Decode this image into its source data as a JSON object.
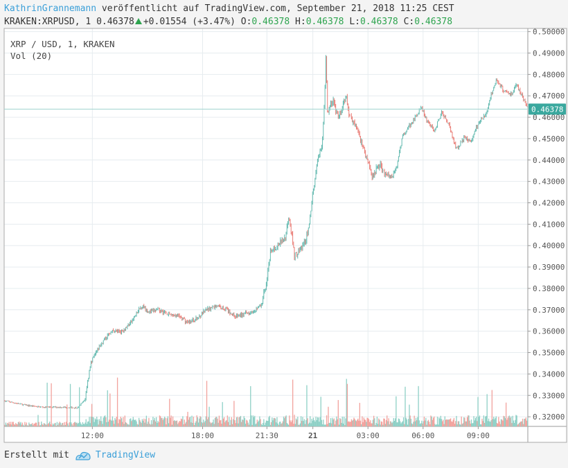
{
  "header": {
    "author": "KathrinGrannemann",
    "published": "veröffentlicht auf TradingView.com, September 21, 2018 11:25 CEST",
    "symbol": "KRAKEN:XRPUSD, 1",
    "last": "0.46378",
    "change": "+0.01554 (+3.47%)",
    "o_label": "O:",
    "o_value": "0.46378",
    "h_label": "H:",
    "h_value": "0.46378",
    "l_label": "L:",
    "l_value": "0.46378",
    "c_label": "C:",
    "c_value": "0.46378"
  },
  "legend": {
    "series": "XRP / USD, 1, KRAKEN",
    "volume": "Vol (20)"
  },
  "footer": {
    "created_with": "Erstellt mit",
    "brand": "TradingView"
  },
  "colors": {
    "up": "#5fb8ae",
    "down": "#e97a73",
    "vol_up": "#8ed0c6",
    "vol_down": "#f2a29d",
    "price_line": "#9fd3cf",
    "price_tag": "#3aa89e",
    "grid": "#e6ecef"
  },
  "chart_data": {
    "type": "candlestick",
    "y_ticks": [
      "0.50000",
      "0.49000",
      "0.48000",
      "0.47000",
      "0.46000",
      "0.45000",
      "0.44000",
      "0.43000",
      "0.42000",
      "0.41000",
      "0.40000",
      "0.39000",
      "0.38000",
      "0.37000",
      "0.36000",
      "0.35000",
      "0.34000",
      "0.33000",
      "0.32000"
    ],
    "y_tick_values": [
      0.5,
      0.49,
      0.48,
      0.47,
      0.46,
      0.45,
      0.44,
      0.43,
      0.42,
      0.41,
      0.4,
      0.39,
      0.38,
      0.37,
      0.36,
      0.35,
      0.34,
      0.33,
      0.32
    ],
    "ylim": [
      0.3155,
      0.5015
    ],
    "x_ticks": [
      "12:00",
      "18:00",
      "21:30",
      "21",
      "03:00",
      "06:00",
      "09:00"
    ],
    "x_tick_hours": [
      12,
      18,
      21.5,
      24,
      27,
      30,
      33
    ],
    "xlim_hours": [
      7.2,
      35.7
    ],
    "current_price": 0.46378,
    "current_price_label": "0.46378",
    "price_path": [
      [
        7.2,
        0.3275
      ],
      [
        8.3,
        0.3255
      ],
      [
        9.2,
        0.3245
      ],
      [
        10.2,
        0.3245
      ],
      [
        11.2,
        0.3242
      ],
      [
        11.6,
        0.328
      ],
      [
        11.9,
        0.345
      ],
      [
        12.4,
        0.353
      ],
      [
        13.0,
        0.36
      ],
      [
        13.6,
        0.36
      ],
      [
        14.1,
        0.364
      ],
      [
        14.7,
        0.372
      ],
      [
        15.1,
        0.369
      ],
      [
        15.6,
        0.37
      ],
      [
        16.2,
        0.368
      ],
      [
        16.7,
        0.367
      ],
      [
        17.2,
        0.364
      ],
      [
        17.7,
        0.366
      ],
      [
        18.2,
        0.37
      ],
      [
        18.8,
        0.372
      ],
      [
        19.3,
        0.37
      ],
      [
        19.8,
        0.367
      ],
      [
        20.3,
        0.368
      ],
      [
        20.8,
        0.37
      ],
      [
        21.2,
        0.372
      ],
      [
        21.5,
        0.384
      ],
      [
        21.7,
        0.397
      ],
      [
        22.1,
        0.4
      ],
      [
        22.5,
        0.404
      ],
      [
        22.7,
        0.415
      ],
      [
        23.0,
        0.395
      ],
      [
        23.3,
        0.398
      ],
      [
        23.6,
        0.402
      ],
      [
        23.8,
        0.41
      ],
      [
        24.0,
        0.425
      ],
      [
        24.3,
        0.442
      ],
      [
        24.5,
        0.447
      ],
      [
        24.65,
        0.47
      ],
      [
        24.7,
        0.49
      ],
      [
        24.8,
        0.462
      ],
      [
        25.1,
        0.468
      ],
      [
        25.4,
        0.459
      ],
      [
        25.8,
        0.47
      ],
      [
        26.0,
        0.46
      ],
      [
        26.3,
        0.457
      ],
      [
        26.7,
        0.447
      ],
      [
        27.0,
        0.44
      ],
      [
        27.2,
        0.432
      ],
      [
        27.6,
        0.438
      ],
      [
        27.9,
        0.434
      ],
      [
        28.3,
        0.432
      ],
      [
        28.6,
        0.438
      ],
      [
        28.9,
        0.452
      ],
      [
        29.2,
        0.455
      ],
      [
        29.6,
        0.46
      ],
      [
        29.9,
        0.465
      ],
      [
        30.2,
        0.458
      ],
      [
        30.6,
        0.454
      ],
      [
        31.0,
        0.462
      ],
      [
        31.4,
        0.457
      ],
      [
        31.8,
        0.445
      ],
      [
        32.2,
        0.45
      ],
      [
        32.6,
        0.449
      ],
      [
        33.0,
        0.457
      ],
      [
        33.4,
        0.461
      ],
      [
        33.7,
        0.47
      ],
      [
        34.0,
        0.478
      ],
      [
        34.4,
        0.472
      ],
      [
        34.8,
        0.471
      ],
      [
        35.1,
        0.475
      ],
      [
        35.4,
        0.47
      ],
      [
        35.7,
        0.464
      ]
    ]
  }
}
